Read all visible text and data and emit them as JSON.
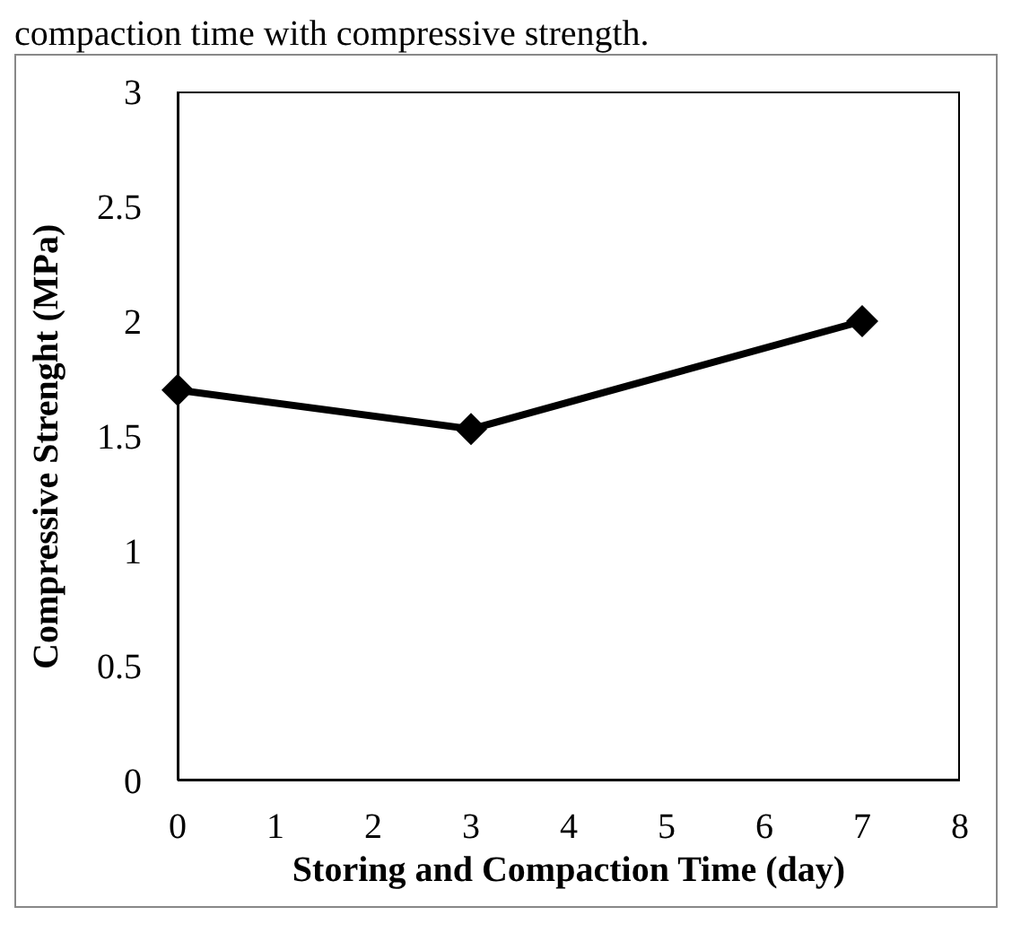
{
  "chart_data": {
    "type": "line",
    "annotations": [
      "compaction time with compressive strength."
    ],
    "xlabel": "Storing and Compaction Time (day)",
    "ylabel": "Compressive Strenght (MPa)",
    "x": [
      0,
      3,
      7
    ],
    "series": [
      {
        "color": "#000000",
        "values": [
          1.7,
          1.53,
          2.0
        ]
      }
    ],
    "xlim": [
      0,
      8
    ],
    "xticks": [
      0,
      1,
      2,
      3,
      4,
      5,
      6,
      7,
      8
    ],
    "ylim": [
      0,
      3
    ],
    "yticks": [
      0,
      0.5,
      1,
      1.5,
      2,
      2.5,
      3
    ],
    "marker": "diamond",
    "line_style": "solid",
    "grid": false
  }
}
